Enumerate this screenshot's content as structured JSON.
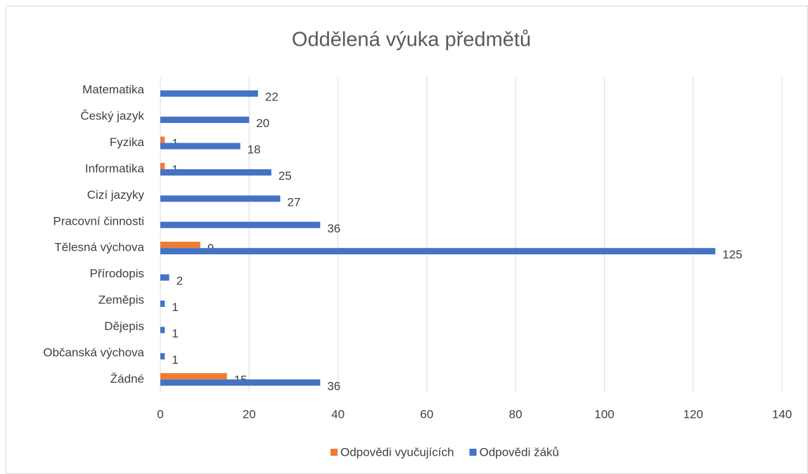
{
  "chart_data": {
    "type": "bar",
    "orientation": "horizontal",
    "title": "Oddělená výuka předmětů",
    "categories": [
      "Matematika",
      "Český jazyk",
      "Fyzika",
      "Informatika",
      "Cizí jazyky",
      "Pracovní činnosti",
      "Tělesná výchova",
      "Přírodopis",
      "Zeměpis",
      "Dějepis",
      "Občanská výchova",
      "Žádné"
    ],
    "series": [
      {
        "name": "Odpovědi vyučujících",
        "color": "#ed7d31",
        "values": [
          null,
          null,
          1,
          1,
          null,
          null,
          9,
          null,
          null,
          null,
          null,
          15
        ]
      },
      {
        "name": "Odpovědi žáků",
        "color": "#4472c4",
        "values": [
          22,
          20,
          18,
          25,
          27,
          36,
          125,
          2,
          1,
          1,
          1,
          36
        ]
      }
    ],
    "xlim": [
      0,
      140
    ],
    "xticks": [
      0,
      20,
      40,
      60,
      80,
      100,
      120,
      140
    ],
    "grid": true,
    "legend": "bottom"
  }
}
